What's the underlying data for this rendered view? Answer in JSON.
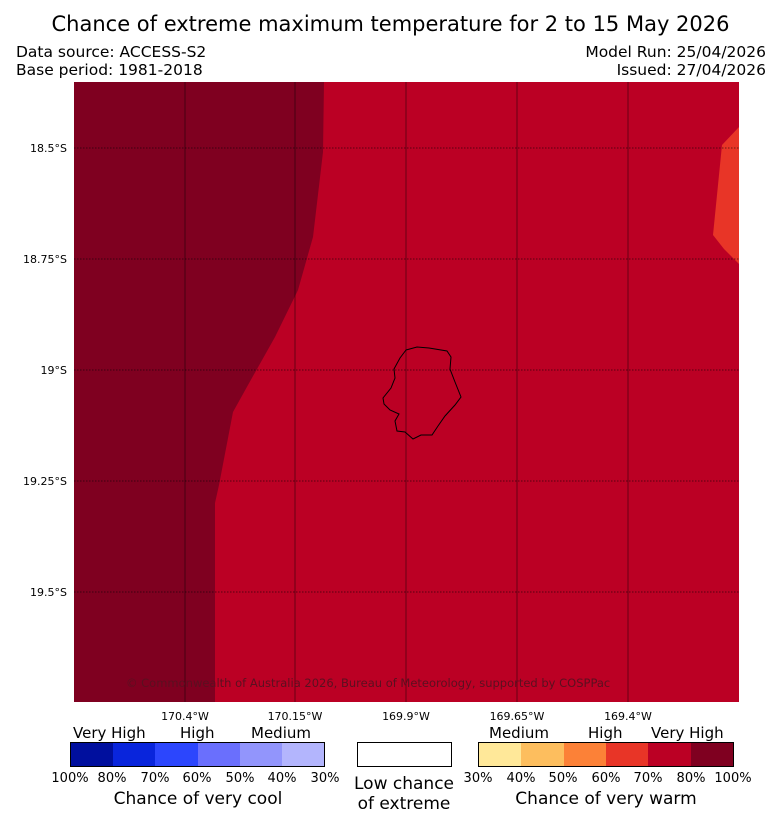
{
  "header": {
    "title": "Chance of extreme maximum temperature for 2 to 15 May 2026",
    "data_source": "Data source: ACCESS-S2",
    "base_period": "Base period: 1981-2018",
    "model_run": "Model Run: 25/04/2026",
    "issued": "Issued: 27/04/2026"
  },
  "map": {
    "latitude_labels": [
      "18.5°S",
      "18.75°S",
      "19°S",
      "19.25°S",
      "19.5°S"
    ],
    "longitude_labels": [
      "170.4°W",
      "170.15°W",
      "169.9°W",
      "169.65°W",
      "169.4°W"
    ],
    "copyright": "© Commonwealth of Australia 2026, Bureau of Meteorology, supported by COSPPac",
    "region_colors": {
      "very_high_warm": "#7f0020",
      "high_warm": "#bb0024",
      "medium_high_warm": "#e83527"
    }
  },
  "legend": {
    "cool": {
      "categories": [
        "Very High",
        "High",
        "Medium"
      ],
      "colors": [
        "#000f9e",
        "#0925dc",
        "#2c46fd",
        "#6a6ffd",
        "#9295fc",
        "#b3b5fd"
      ],
      "percents": [
        "100%",
        "80%",
        "70%",
        "60%",
        "50%",
        "40%",
        "30%"
      ],
      "title": "Chance of very cool"
    },
    "neutral": {
      "line1": "Low chance",
      "line2": "of extreme",
      "color": "#ffffff"
    },
    "warm": {
      "categories": [
        "Medium",
        "High",
        "Very High"
      ],
      "colors": [
        "#ffe899",
        "#fdbe5e",
        "#fc8137",
        "#e83527",
        "#bb0024",
        "#7f0020"
      ],
      "percents": [
        "30%",
        "40%",
        "50%",
        "60%",
        "70%",
        "80%",
        "100%"
      ],
      "title": "Chance of very warm"
    }
  }
}
